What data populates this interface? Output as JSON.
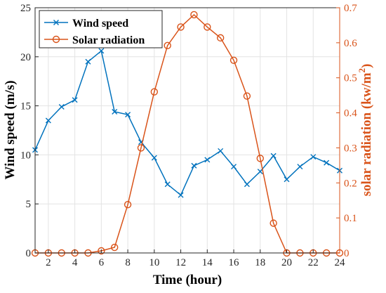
{
  "chart_data": {
    "type": "line",
    "xlabel": "Time (hour)",
    "x": [
      1,
      2,
      3,
      4,
      5,
      6,
      7,
      8,
      9,
      10,
      11,
      12,
      13,
      14,
      15,
      16,
      17,
      18,
      19,
      20,
      21,
      22,
      23,
      24
    ],
    "xlim": [
      1,
      24
    ],
    "xticks": [
      2,
      4,
      6,
      8,
      10,
      12,
      14,
      16,
      18,
      20,
      22,
      24
    ],
    "y_left": {
      "label": "Wind speed (m/s)",
      "lim": [
        0,
        25
      ],
      "ticks": [
        0,
        5,
        10,
        15,
        20,
        25
      ]
    },
    "y_right": {
      "label": "solar radiation (kw/m",
      "label_sup": "2",
      "label_end": ")",
      "lim": [
        0,
        0.7
      ],
      "ticks": [
        "0",
        "0.1",
        "0.2",
        "0.3",
        "0.4",
        "0.5",
        "0.6",
        "0.7"
      ]
    },
    "series": [
      {
        "name": "Wind speed",
        "axis": "left",
        "color": "#0072BD",
        "marker": "x",
        "values": [
          10.5,
          13.5,
          14.9,
          15.6,
          19.5,
          20.6,
          14.4,
          14.1,
          11.3,
          9.7,
          7.0,
          5.9,
          8.9,
          9.5,
          10.4,
          8.8,
          7.0,
          8.3,
          9.9,
          7.5,
          8.8,
          9.8,
          9.2,
          8.4
        ]
      },
      {
        "name": "Solar radiation",
        "axis": "right",
        "color": "#D95319",
        "marker": "o",
        "values": [
          0,
          0,
          0,
          0,
          0,
          0.006,
          0.016,
          0.138,
          0.3,
          0.46,
          0.592,
          0.645,
          0.68,
          0.645,
          0.614,
          0.55,
          0.448,
          0.27,
          0.085,
          0,
          0,
          0,
          0,
          0
        ]
      }
    ],
    "legend_position": "top-left",
    "grid": true
  }
}
